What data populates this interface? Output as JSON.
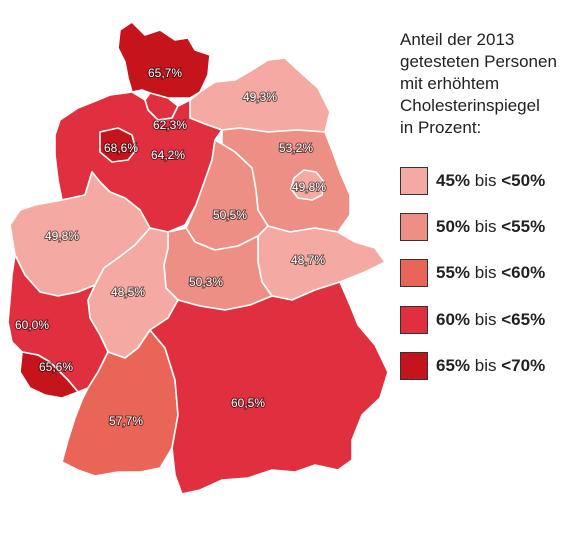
{
  "legend": {
    "title_lines": [
      "Anteil der 2013",
      "getesteten Personen",
      "mit erhöhtem",
      "Cholesterinspiegel",
      "in Prozent:"
    ],
    "items": [
      {
        "from": "45%",
        "mid": "bis",
        "to": "<50%",
        "color": "#f4aaa2"
      },
      {
        "from": "50%",
        "mid": "bis",
        "to": "<55%",
        "color": "#ee8f86"
      },
      {
        "from": "55%",
        "mid": "bis",
        "to": "<60%",
        "color": "#e96558"
      },
      {
        "from": "60%",
        "mid": "bis",
        "to": "<65%",
        "color": "#e0303f"
      },
      {
        "from": "65%",
        "mid": "bis",
        "to": "<70%",
        "color": "#c5141c"
      }
    ]
  },
  "regions": [
    {
      "name": "Schleswig-Holstein",
      "value": "65,7%",
      "color": "#c5141c"
    },
    {
      "name": "Hamburg",
      "value": "62,3%",
      "color": "#e0303f"
    },
    {
      "name": "Mecklenburg-Vorpommern",
      "value": "49,3%",
      "color": "#f4aaa2"
    },
    {
      "name": "Bremen",
      "value": "68,6%",
      "color": "#c5141c"
    },
    {
      "name": "Niedersachsen",
      "value": "64,2%",
      "color": "#e0303f"
    },
    {
      "name": "Brandenburg",
      "value": "53,2%",
      "color": "#ee8f86"
    },
    {
      "name": "Berlin",
      "value": "49,8%",
      "color": "#f4aaa2"
    },
    {
      "name": "Sachsen-Anhalt",
      "value": "50,5%",
      "color": "#ee8f86"
    },
    {
      "name": "Nordrhein-Westfalen",
      "value": "49,8%",
      "color": "#f4aaa2"
    },
    {
      "name": "Sachsen",
      "value": "48,7%",
      "color": "#f4aaa2"
    },
    {
      "name": "Thüringen",
      "value": "50,3%",
      "color": "#ee8f86"
    },
    {
      "name": "Hessen",
      "value": "48,5%",
      "color": "#f4aaa2"
    },
    {
      "name": "Rheinland-Pfalz",
      "value": "60,0%",
      "color": "#e0303f"
    },
    {
      "name": "Saarland",
      "value": "65,6%",
      "color": "#c5141c"
    },
    {
      "name": "Baden-Württemberg",
      "value": "57,7%",
      "color": "#e96558"
    },
    {
      "name": "Bayern",
      "value": "60,5%",
      "color": "#e0303f"
    }
  ]
}
